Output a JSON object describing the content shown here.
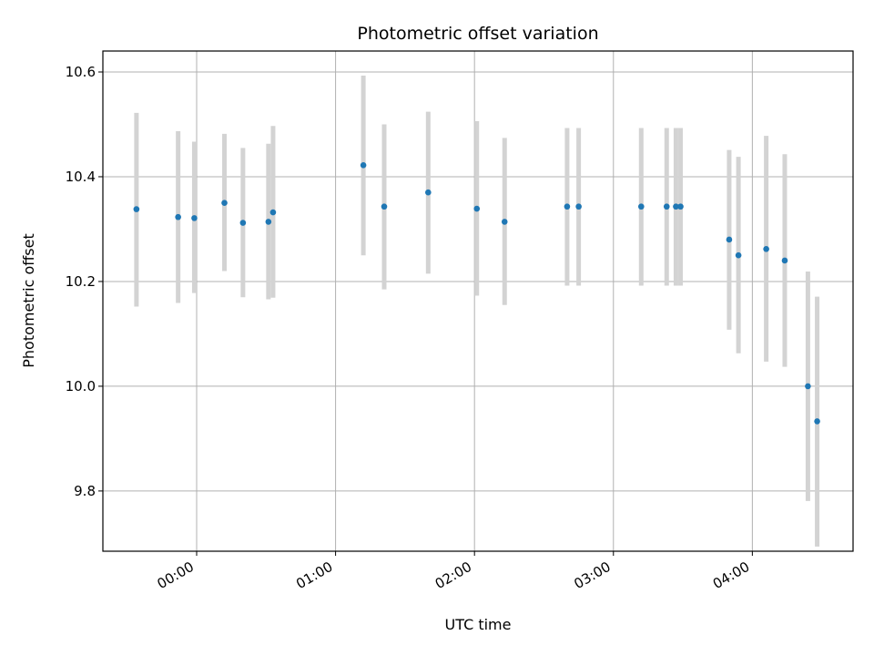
{
  "chart_data": {
    "type": "scatter",
    "title": "Photometric offset variation",
    "xlabel": "UTC time",
    "ylabel": "Photometric offset",
    "x_ticks": [
      {
        "value": 0,
        "label": "00:00"
      },
      {
        "value": 60,
        "label": "01:00"
      },
      {
        "value": 120,
        "label": "02:00"
      },
      {
        "value": 180,
        "label": "03:00"
      },
      {
        "value": 240,
        "label": "04:00"
      }
    ],
    "y_ticks": [
      {
        "value": 9.8,
        "label": "9.8"
      },
      {
        "value": 10.0,
        "label": "10.0"
      },
      {
        "value": 10.2,
        "label": "10.2"
      },
      {
        "value": 10.4,
        "label": "10.4"
      },
      {
        "value": 10.6,
        "label": "10.6"
      }
    ],
    "xlim": [
      -40.5,
      283.5
    ],
    "ylim": [
      9.685,
      10.64
    ],
    "grid": true,
    "colors": {
      "point": "#1f77b4",
      "errorbar": "#d3d3d3",
      "grid": "#b0b0b0"
    },
    "points": [
      {
        "x": -26,
        "y": 10.338,
        "lo": 10.152,
        "hi": 10.522
      },
      {
        "x": -8,
        "y": 10.323,
        "lo": 10.159,
        "hi": 10.487
      },
      {
        "x": -1,
        "y": 10.321,
        "lo": 10.178,
        "hi": 10.467
      },
      {
        "x": 12,
        "y": 10.35,
        "lo": 10.22,
        "hi": 10.482
      },
      {
        "x": 20,
        "y": 10.312,
        "lo": 10.17,
        "hi": 10.455
      },
      {
        "x": 31,
        "y": 10.314,
        "lo": 10.166,
        "hi": 10.463
      },
      {
        "x": 33,
        "y": 10.332,
        "lo": 10.169,
        "hi": 10.497
      },
      {
        "x": 72,
        "y": 10.422,
        "lo": 10.25,
        "hi": 10.593
      },
      {
        "x": 81,
        "y": 10.343,
        "lo": 10.185,
        "hi": 10.5
      },
      {
        "x": 100,
        "y": 10.37,
        "lo": 10.215,
        "hi": 10.524
      },
      {
        "x": 121,
        "y": 10.339,
        "lo": 10.173,
        "hi": 10.506
      },
      {
        "x": 133,
        "y": 10.314,
        "lo": 10.155,
        "hi": 10.474
      },
      {
        "x": 160,
        "y": 10.343,
        "lo": 10.192,
        "hi": 10.493
      },
      {
        "x": 165,
        "y": 10.343,
        "lo": 10.192,
        "hi": 10.493
      },
      {
        "x": 192,
        "y": 10.343,
        "lo": 10.192,
        "hi": 10.493
      },
      {
        "x": 203,
        "y": 10.343,
        "lo": 10.192,
        "hi": 10.493
      },
      {
        "x": 207,
        "y": 10.343,
        "lo": 10.192,
        "hi": 10.493
      },
      {
        "x": 209,
        "y": 10.343,
        "lo": 10.192,
        "hi": 10.493
      },
      {
        "x": 230,
        "y": 10.28,
        "lo": 10.108,
        "hi": 10.451
      },
      {
        "x": 234,
        "y": 10.25,
        "lo": 10.063,
        "hi": 10.438
      },
      {
        "x": 246,
        "y": 10.262,
        "lo": 10.047,
        "hi": 10.478
      },
      {
        "x": 254,
        "y": 10.24,
        "lo": 10.037,
        "hi": 10.443
      },
      {
        "x": 264,
        "y": 10.0,
        "lo": 9.781,
        "hi": 10.219
      },
      {
        "x": 268,
        "y": 9.933,
        "lo": 9.694,
        "hi": 10.171
      }
    ]
  }
}
